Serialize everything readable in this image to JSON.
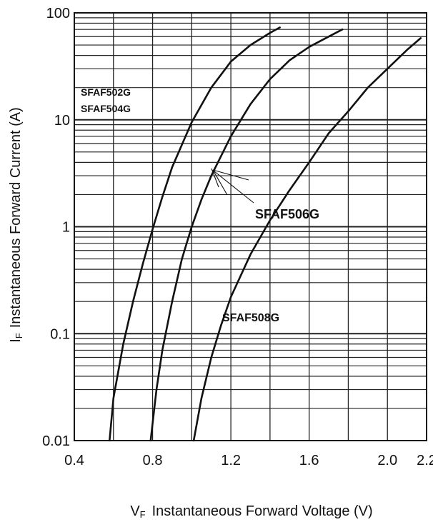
{
  "chart_data": {
    "type": "line",
    "title": "",
    "xlabel_main": "V",
    "xlabel_sub": "F",
    "xlabel_rest": "Instantaneous Forward Voltage (V)",
    "ylabel_main": "I",
    "ylabel_sub": "F",
    "ylabel_rest": "Instantaneous Forward Current (A)",
    "xscale": "linear",
    "yscale": "log",
    "xlim": [
      0.4,
      2.2
    ],
    "ylim": [
      0.01,
      100
    ],
    "grid": true,
    "xticks": [
      "0.4",
      "0.8",
      "1.2",
      "1.6",
      "2.0",
      "2.2"
    ],
    "xtick_values": [
      0.4,
      0.8,
      1.2,
      1.6,
      2.0,
      2.2
    ],
    "yticks": [
      "0.01",
      "0.1",
      "1",
      "10",
      "100"
    ],
    "ytick_values": [
      0.01,
      0.1,
      1,
      10,
      100
    ],
    "series": [
      {
        "name": "SFAF502G SFAF504G",
        "x": [
          0.58,
          0.6,
          0.65,
          0.7,
          0.75,
          0.8,
          0.85,
          0.9,
          1.0,
          1.1,
          1.2,
          1.3,
          1.4,
          1.45
        ],
        "y": [
          0.01,
          0.025,
          0.08,
          0.2,
          0.45,
          0.95,
          1.9,
          3.6,
          9.5,
          20,
          35,
          50,
          65,
          73
        ]
      },
      {
        "name": "SFAF506G",
        "x": [
          0.79,
          0.82,
          0.85,
          0.9,
          0.95,
          1.0,
          1.05,
          1.1,
          1.2,
          1.3,
          1.4,
          1.5,
          1.6,
          1.7,
          1.77
        ],
        "y": [
          0.01,
          0.03,
          0.07,
          0.2,
          0.5,
          1.0,
          1.8,
          3.0,
          7.0,
          14,
          24,
          36,
          48,
          60,
          70
        ]
      },
      {
        "name": "SFAF508G",
        "x": [
          1.01,
          1.05,
          1.1,
          1.15,
          1.2,
          1.3,
          1.4,
          1.5,
          1.6,
          1.7,
          1.8,
          1.9,
          2.0,
          2.1,
          2.17
        ],
        "y": [
          0.01,
          0.025,
          0.06,
          0.12,
          0.22,
          0.55,
          1.15,
          2.2,
          4.0,
          7.5,
          12,
          20,
          30,
          45,
          58
        ]
      }
    ],
    "labels": {
      "s1_line1": "SFAF502G",
      "s1_line2": "SFAF504G",
      "s2": "SFAF506G",
      "s3": "SFAF508G"
    },
    "colors": {
      "line": "#111111",
      "grid": "#222222",
      "background": "#ffffff"
    }
  }
}
